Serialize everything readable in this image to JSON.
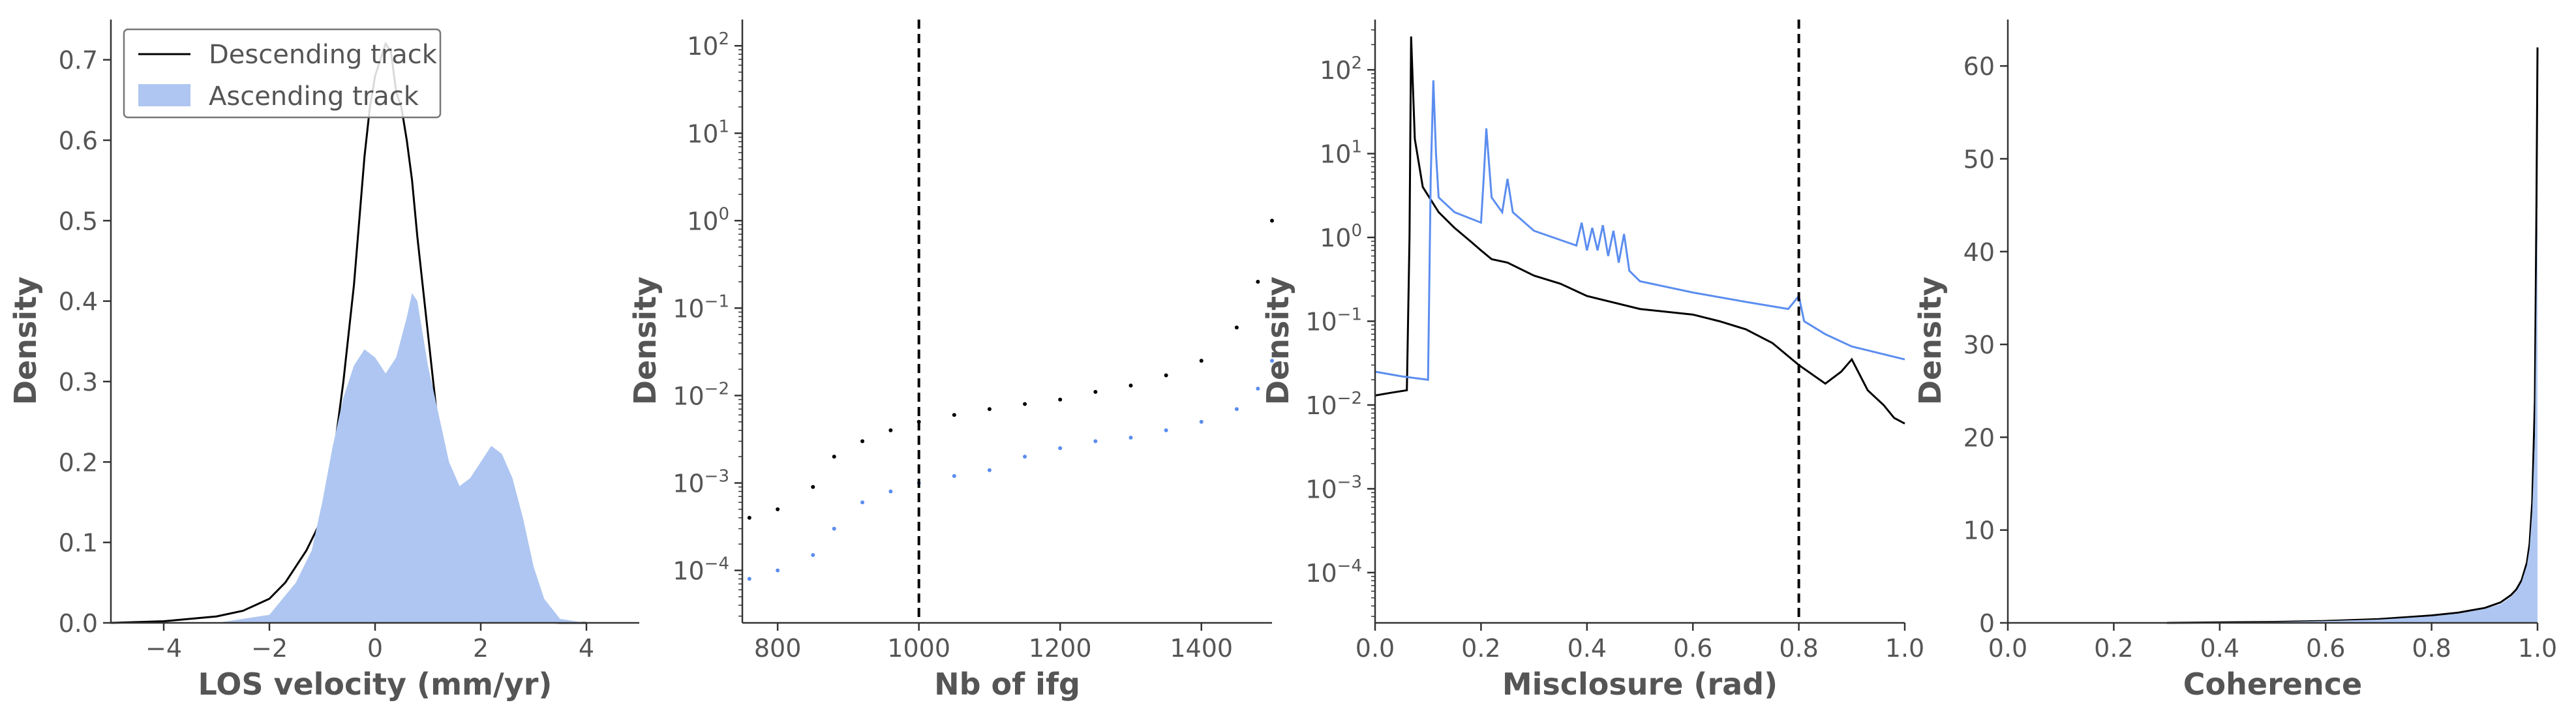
{
  "chart_data": [
    {
      "type": "area",
      "xlabel": "LOS velocity (mm/yr)",
      "ylabel": "Density",
      "xlim": [
        -5,
        5
      ],
      "ylim": [
        0,
        0.75
      ],
      "xticks": [
        -4,
        -2,
        0,
        2,
        4
      ],
      "yticks": [
        0.0,
        0.1,
        0.2,
        0.3,
        0.4,
        0.5,
        0.6,
        0.7
      ],
      "legend_position": "top-left",
      "series": [
        {
          "name": "Descending track",
          "style": "line",
          "color": "#000000",
          "x": [
            -5.0,
            -4.0,
            -3.0,
            -2.5,
            -2.0,
            -1.7,
            -1.5,
            -1.3,
            -1.0,
            -0.8,
            -0.6,
            -0.4,
            -0.3,
            -0.2,
            -0.1,
            0.0,
            0.1,
            0.2,
            0.3,
            0.4,
            0.5,
            0.6,
            0.7,
            0.8,
            0.9,
            1.0,
            1.2,
            1.5,
            1.8,
            2.0,
            2.3,
            2.6,
            3.0,
            3.5,
            4.0
          ],
          "y": [
            0.0,
            0.002,
            0.008,
            0.015,
            0.03,
            0.05,
            0.07,
            0.09,
            0.13,
            0.2,
            0.3,
            0.42,
            0.5,
            0.58,
            0.64,
            0.68,
            0.7,
            0.72,
            0.71,
            0.66,
            0.64,
            0.6,
            0.55,
            0.48,
            0.42,
            0.36,
            0.24,
            0.12,
            0.05,
            0.025,
            0.012,
            0.005,
            0.002,
            0.0,
            0.0
          ]
        },
        {
          "name": "Ascending track",
          "style": "fill",
          "color": "#aec6f1",
          "x": [
            -5.0,
            -3.0,
            -2.0,
            -1.5,
            -1.2,
            -1.0,
            -0.8,
            -0.6,
            -0.4,
            -0.2,
            0.0,
            0.2,
            0.4,
            0.6,
            0.7,
            0.8,
            0.9,
            1.0,
            1.2,
            1.4,
            1.6,
            1.8,
            2.0,
            2.2,
            2.4,
            2.6,
            2.8,
            3.0,
            3.2,
            3.5,
            4.0
          ],
          "y": [
            0.0,
            0.0,
            0.01,
            0.05,
            0.09,
            0.15,
            0.22,
            0.28,
            0.32,
            0.34,
            0.33,
            0.31,
            0.33,
            0.38,
            0.41,
            0.4,
            0.36,
            0.32,
            0.26,
            0.2,
            0.17,
            0.18,
            0.2,
            0.22,
            0.21,
            0.18,
            0.13,
            0.07,
            0.03,
            0.005,
            0.0
          ]
        }
      ]
    },
    {
      "type": "scatter",
      "xlabel": "Nb of ifg",
      "ylabel": "Density",
      "xlim": [
        750,
        1500
      ],
      "ylim_log10": [
        -4.6,
        2.3
      ],
      "yscale": "log",
      "xticks": [
        800,
        1000,
        1200,
        1400
      ],
      "yticks_exp": [
        -4,
        -3,
        -2,
        -1,
        0,
        1,
        2
      ],
      "vline": 1000,
      "series": [
        {
          "color": "#000000",
          "x": [
            760,
            800,
            850,
            880,
            920,
            960,
            1000,
            1050,
            1100,
            1150,
            1200,
            1250,
            1300,
            1350,
            1400,
            1450,
            1480,
            1500
          ],
          "y": [
            0.0004,
            0.0005,
            0.0009,
            0.002,
            0.003,
            0.004,
            0.005,
            0.006,
            0.007,
            0.008,
            0.009,
            0.011,
            0.013,
            0.017,
            0.025,
            0.06,
            0.2,
            1.0
          ]
        },
        {
          "color": "#5b8def",
          "x": [
            760,
            800,
            850,
            880,
            920,
            960,
            1000,
            1050,
            1100,
            1150,
            1200,
            1250,
            1300,
            1350,
            1400,
            1450,
            1480,
            1500
          ],
          "y": [
            8e-05,
            0.0001,
            0.00015,
            0.0003,
            0.0006,
            0.0008,
            0.001,
            0.0012,
            0.0014,
            0.002,
            0.0025,
            0.003,
            0.0033,
            0.004,
            0.005,
            0.007,
            0.012,
            0.025
          ]
        }
      ]
    },
    {
      "type": "line",
      "xlabel": "Misclosure (rad)",
      "ylabel": "Density",
      "xlim": [
        0,
        1
      ],
      "ylim_log10": [
        -4.6,
        2.6
      ],
      "yscale": "log",
      "xticks": [
        0.0,
        0.2,
        0.4,
        0.6,
        0.8,
        1.0
      ],
      "yticks_exp": [
        -4,
        -3,
        -2,
        -1,
        0,
        1,
        2
      ],
      "vline": 0.8,
      "series": [
        {
          "color": "#000000",
          "x": [
            0.0,
            0.03,
            0.06,
            0.065,
            0.068,
            0.075,
            0.09,
            0.12,
            0.15,
            0.18,
            0.2,
            0.22,
            0.25,
            0.3,
            0.35,
            0.4,
            0.5,
            0.6,
            0.65,
            0.7,
            0.75,
            0.8,
            0.85,
            0.88,
            0.9,
            0.93,
            0.96,
            0.98,
            1.0
          ],
          "y": [
            0.013,
            0.014,
            0.015,
            1.0,
            250,
            15,
            4,
            2,
            1.3,
            0.9,
            0.7,
            0.55,
            0.5,
            0.35,
            0.28,
            0.2,
            0.14,
            0.12,
            0.1,
            0.08,
            0.055,
            0.03,
            0.018,
            0.025,
            0.035,
            0.015,
            0.01,
            0.007,
            0.006
          ]
        },
        {
          "color": "#5b8def",
          "x": [
            0.0,
            0.05,
            0.1,
            0.105,
            0.11,
            0.115,
            0.12,
            0.15,
            0.2,
            0.205,
            0.21,
            0.22,
            0.24,
            0.25,
            0.26,
            0.3,
            0.38,
            0.39,
            0.4,
            0.41,
            0.42,
            0.43,
            0.44,
            0.45,
            0.46,
            0.47,
            0.48,
            0.5,
            0.6,
            0.7,
            0.78,
            0.8,
            0.81,
            0.85,
            0.9,
            1.0
          ],
          "y": [
            0.025,
            0.022,
            0.02,
            5,
            75,
            10,
            3,
            2,
            1.5,
            5,
            20,
            3,
            2,
            5,
            2,
            1.2,
            0.8,
            1.5,
            0.7,
            1.3,
            0.7,
            1.4,
            0.6,
            1.2,
            0.5,
            1.1,
            0.4,
            0.3,
            0.22,
            0.17,
            0.14,
            0.2,
            0.1,
            0.07,
            0.05,
            0.035
          ]
        }
      ]
    },
    {
      "type": "area",
      "xlabel": "Coherence",
      "ylabel": "Density",
      "xlim": [
        0,
        1
      ],
      "ylim": [
        0,
        65
      ],
      "xticks": [
        0.0,
        0.2,
        0.4,
        0.6,
        0.8,
        1.0
      ],
      "yticks": [
        0,
        10,
        20,
        30,
        40,
        50,
        60
      ],
      "series": [
        {
          "style": "line",
          "color": "#000000",
          "x": [
            0.3,
            0.5,
            0.6,
            0.7,
            0.8,
            0.85,
            0.9,
            0.93,
            0.95,
            0.96,
            0.97,
            0.98,
            0.985,
            0.99,
            0.995,
            0.998,
            1.0
          ],
          "y": [
            0.0,
            0.1,
            0.2,
            0.4,
            0.8,
            1.1,
            1.6,
            2.2,
            3.0,
            3.6,
            4.6,
            6.5,
            8.5,
            13,
            24,
            45,
            62
          ]
        },
        {
          "style": "fill",
          "color": "#aec6f1",
          "x": [
            0.3,
            0.5,
            0.6,
            0.7,
            0.8,
            0.85,
            0.9,
            0.93,
            0.95,
            0.96,
            0.97,
            0.98,
            0.985,
            0.99,
            0.995,
            0.998,
            1.0
          ],
          "y": [
            0.0,
            0.1,
            0.2,
            0.35,
            0.7,
            1.0,
            1.5,
            2.0,
            2.8,
            3.4,
            4.4,
            6.2,
            8.0,
            12,
            20,
            35,
            45
          ]
        }
      ]
    }
  ]
}
